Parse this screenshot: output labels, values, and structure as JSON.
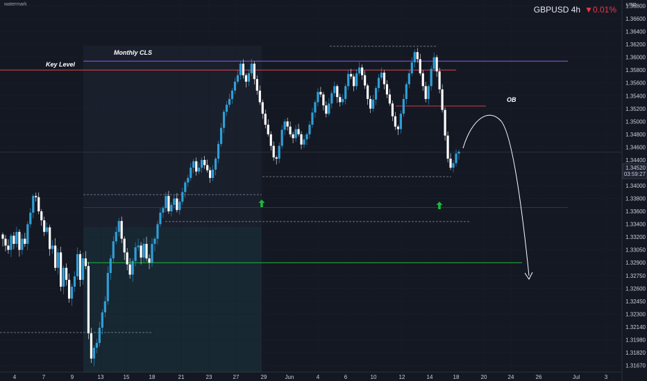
{
  "watermark": "watermark",
  "header": {
    "symbol": "GBPUSD 4h",
    "change": "▼0.01%",
    "currency": "USD"
  },
  "colors": {
    "background": "#141823",
    "bull": "#2f9fd7",
    "bear": "#ffffff",
    "monthly_line": "#8e5cf5",
    "key_level": "#e4484b",
    "target_line": "#1fbf3a",
    "arrow_up": "#1db83f"
  },
  "price_badge": {
    "value": "1.34520",
    "timer": "03:59:27"
  },
  "chart_data": {
    "type": "candlestick",
    "title": "",
    "yticks": [
      1.368,
      1.366,
      1.364,
      1.362,
      1.36,
      1.358,
      1.356,
      1.354,
      1.352,
      1.35,
      1.348,
      1.346,
      1.344,
      1.342,
      1.34,
      1.338,
      1.336,
      1.334,
      1.332,
      1.3305,
      1.329,
      1.3275,
      1.326,
      1.3245,
      1.323,
      1.3214,
      1.3198,
      1.3182,
      1.3167
    ],
    "ytick_labels": [
      "1.36800",
      "1.36600",
      "1.36400",
      "1.36200",
      "1.36000",
      "1.35800",
      "1.35600",
      "1.35400",
      "1.35200",
      "1.35000",
      "1.34800",
      "1.34600",
      "1.34400",
      "1.34200",
      "1.34000",
      "1.33800",
      "1.33600",
      "1.33400",
      "1.33200",
      "1.33050",
      "1.32900",
      "1.32750",
      "1.32600",
      "1.32450",
      "1.32300",
      "1.32140",
      "1.31980",
      "1.31820",
      "1.31670"
    ],
    "xticks": [
      "4",
      "7",
      "9",
      "13",
      "15",
      "18",
      "21",
      "23",
      "27",
      "29",
      "Jun",
      "4",
      "6",
      "10",
      "12",
      "14",
      "18",
      "20",
      "24",
      "26",
      "Jul",
      "3"
    ],
    "annotations": {
      "monthly_cls": {
        "label": "Monthly CLS",
        "price": 1.3594
      },
      "key_level": {
        "label": "Key Level",
        "price": 1.358
      },
      "ob": {
        "label": "OB",
        "price": 1.3524
      },
      "target": {
        "price": 1.329
      }
    },
    "close_path": [
      1.3318,
      1.331,
      1.3305,
      1.3322,
      1.3312,
      1.3328,
      1.3305,
      1.3318,
      1.3312,
      1.334,
      1.3358,
      1.3384,
      1.3382,
      1.336,
      1.3346,
      1.3328,
      1.3335,
      1.3306,
      1.331,
      1.3284,
      1.3302,
      1.3262,
      1.3284,
      1.327,
      1.3248,
      1.3262,
      1.3274,
      1.33,
      1.327,
      1.3295,
      1.3286,
      1.3206,
      1.3175,
      1.3188,
      1.3194,
      1.3213,
      1.3232,
      1.3245,
      1.3278,
      1.3295,
      1.3315,
      1.3328,
      1.3345,
      1.3318,
      1.3302,
      1.3288,
      1.3276,
      1.3292,
      1.3308,
      1.331,
      1.3296,
      1.3312,
      1.3295,
      1.329,
      1.3312,
      1.3318,
      1.334,
      1.3358,
      1.3365,
      1.3384,
      1.336,
      1.337,
      1.338,
      1.3362,
      1.3375,
      1.339,
      1.3405,
      1.3412,
      1.3428,
      1.3438,
      1.3422,
      1.3428,
      1.344,
      1.3432,
      1.3424,
      1.3412,
      1.3425,
      1.3442,
      1.3465,
      1.349,
      1.3515,
      1.3526,
      1.3535,
      1.3548,
      1.3562,
      1.3572,
      1.359,
      1.3572,
      1.3562,
      1.3575,
      1.359,
      1.3566,
      1.3548,
      1.353,
      1.3512,
      1.3495,
      1.348,
      1.3462,
      1.3444,
      1.3442,
      1.3462,
      1.3487,
      1.35,
      1.3492,
      1.348,
      1.3474,
      1.3488,
      1.348,
      1.3464,
      1.3472,
      1.348,
      1.3495,
      1.3514,
      1.353,
      1.3546,
      1.3542,
      1.3525,
      1.3512,
      1.3528,
      1.3544,
      1.3555,
      1.3538,
      1.353,
      1.3535,
      1.3555,
      1.3574,
      1.357,
      1.3555,
      1.3575,
      1.3584,
      1.3572,
      1.3556,
      1.3535,
      1.352,
      1.3534,
      1.3552,
      1.3568,
      1.3576,
      1.3558,
      1.3542,
      1.3528,
      1.3508,
      1.3492,
      1.3488,
      1.3512,
      1.3535,
      1.3558,
      1.3575,
      1.3592,
      1.3608,
      1.3597,
      1.3575,
      1.3555,
      1.3535,
      1.3555,
      1.3582,
      1.36,
      1.3578,
      1.355,
      1.3518,
      1.3478,
      1.3442,
      1.3428,
      1.3435,
      1.345,
      1.3453
    ]
  }
}
